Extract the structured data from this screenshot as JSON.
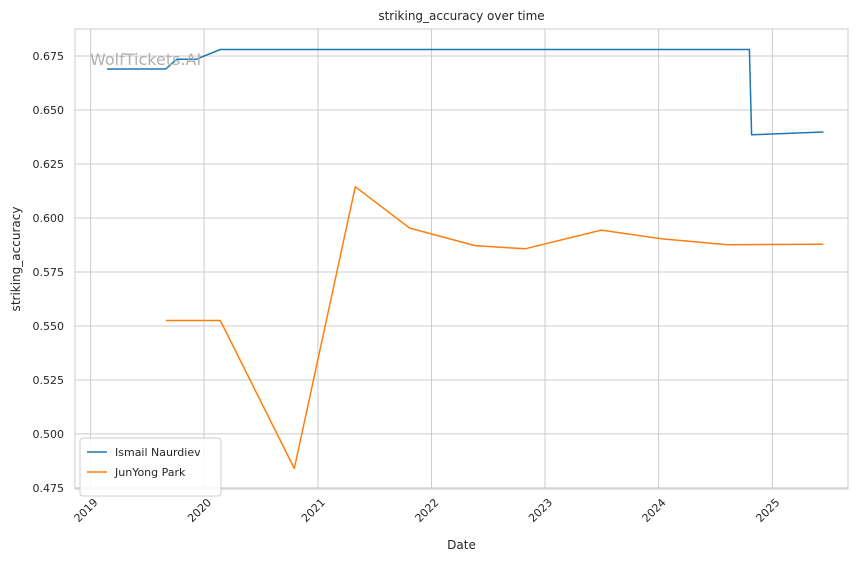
{
  "chart_data": {
    "type": "line",
    "title": "striking_accuracy over time",
    "xlabel": "Date",
    "ylabel": "striking_accuracy",
    "watermark": "WolfTickets.AI",
    "xlim": [
      "2018-11-12",
      "2025-09-01"
    ],
    "ylim": [
      0.4745,
      0.6875
    ],
    "x_ticks": [
      "2019-01-01",
      "2020-01-01",
      "2021-01-01",
      "2022-01-01",
      "2023-01-01",
      "2024-01-01",
      "2025-01-01"
    ],
    "x_tick_labels": [
      "2019",
      "2020",
      "2021",
      "2022",
      "2023",
      "2024",
      "2025"
    ],
    "y_ticks": [
      0.475,
      0.5,
      0.525,
      0.55,
      0.575,
      0.6,
      0.625,
      0.65,
      0.675
    ],
    "y_tick_labels": [
      "0.475",
      "0.500",
      "0.525",
      "0.550",
      "0.575",
      "0.600",
      "0.625",
      "0.650",
      "0.675"
    ],
    "grid": true,
    "legend_position": "lower-left",
    "series": [
      {
        "name": "Ismail Naurdiev",
        "color": "#1f77b4",
        "points": [
          [
            "2019-02-23",
            0.669
          ],
          [
            "2019-08-31",
            0.669
          ],
          [
            "2019-10-05",
            0.6735
          ],
          [
            "2019-12-07",
            0.6735
          ],
          [
            "2020-02-22",
            0.678
          ],
          [
            "2024-10-19",
            0.678
          ],
          [
            "2024-10-26",
            0.6385
          ],
          [
            "2025-06-14",
            0.6398
          ]
        ]
      },
      {
        "name": "JunYong Park",
        "color": "#ff7f0e",
        "points": [
          [
            "2019-08-31",
            0.5525
          ],
          [
            "2020-02-22",
            0.5525
          ],
          [
            "2020-10-17",
            0.484
          ],
          [
            "2021-05-01",
            0.6145
          ],
          [
            "2021-10-23",
            0.5953
          ],
          [
            "2022-05-21",
            0.5872
          ],
          [
            "2022-10-29",
            0.5857
          ],
          [
            "2023-07-01",
            0.5944
          ],
          [
            "2024-01-13",
            0.5903
          ],
          [
            "2024-08-10",
            0.5876
          ],
          [
            "2025-06-14",
            0.5878
          ]
        ]
      }
    ]
  }
}
